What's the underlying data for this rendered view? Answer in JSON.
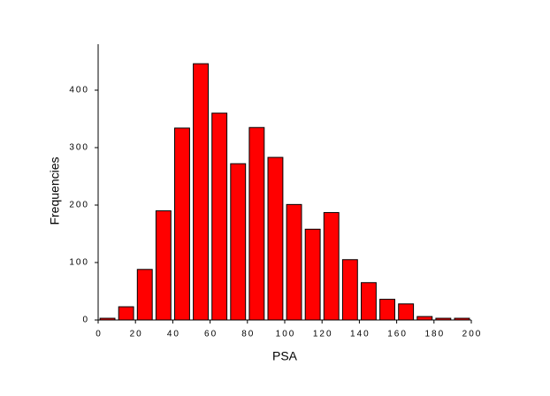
{
  "chart_data": {
    "type": "histogram",
    "x_label": "PSA",
    "y_label": "Frequencies",
    "bins": [
      0,
      10,
      20,
      30,
      40,
      50,
      60,
      70,
      80,
      90,
      100,
      110,
      120,
      130,
      140,
      150,
      160,
      170,
      180,
      190,
      200
    ],
    "counts": [
      3,
      23,
      88,
      190,
      334,
      446,
      360,
      272,
      335,
      283,
      201,
      158,
      187,
      105,
      65,
      36,
      28,
      6,
      3,
      3
    ],
    "color": "#ff0000",
    "xlim": [
      0,
      200
    ],
    "xticks": [
      0,
      20,
      40,
      60,
      80,
      100,
      120,
      140,
      160,
      180,
      200
    ],
    "ylim": [
      0,
      480
    ],
    "yticks": [
      0,
      100,
      200,
      300,
      400
    ],
    "grid": false
  }
}
